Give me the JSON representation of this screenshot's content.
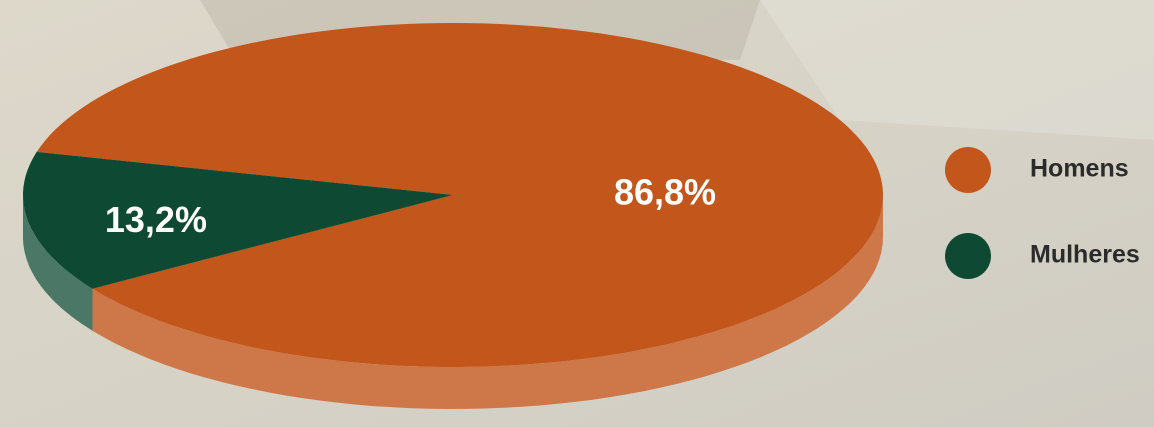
{
  "chart_data": {
    "type": "pie",
    "categories": [
      "Homens",
      "Mulheres"
    ],
    "values": [
      86.8,
      13.2
    ],
    "value_labels": [
      "86,8%",
      "13,2%"
    ],
    "colors": [
      "#c2561b",
      "#0e4a33"
    ],
    "legend": "right"
  }
}
